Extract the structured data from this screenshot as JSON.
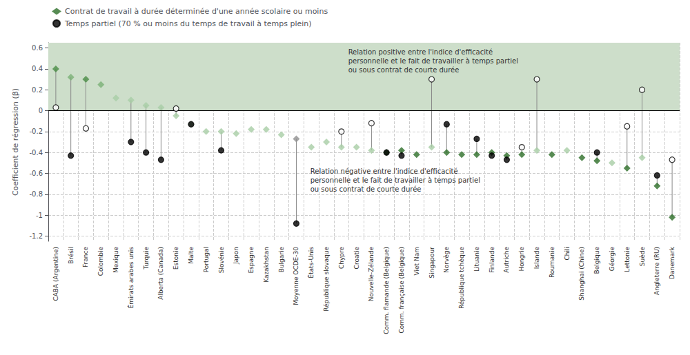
{
  "chart_data": {
    "type": "scatter",
    "ylabel": "Coefficient de régression (β)",
    "categories": [
      "CABA (Argentine)",
      "Brésil",
      "France",
      "Colombie",
      "Mexique",
      "Émirats arabes unis",
      "Turquie",
      "Alberta (Canada)",
      "Estonie",
      "Malte",
      "Portugal",
      "Slovénie",
      "Japon",
      "Espagne",
      "Kazakhstan",
      "Bulgarie",
      "Moyenne OCDE-30",
      "États-Unis",
      "République slovaque",
      "Chypre",
      "Croatie",
      "Nouvelle-Zélande",
      "Comm. flamande (Belgique)",
      "Comm. française (Belgique)",
      "Viet Nam",
      "Singapour",
      "Norvège",
      "République tchèque",
      "Lituanie",
      "Finlande",
      "Autriche",
      "Hongrie",
      "Islande",
      "Roumanie",
      "Chili",
      "Shanghai (Chine)",
      "Belgique",
      "Géorgie",
      "Lettonie",
      "Suède",
      "Angleterre (RU)",
      "Danemark"
    ],
    "series": [
      {
        "name": "Contrat de travail à durée déterminée d'une année scolaire ou moins",
        "marker": "diamond",
        "color": "#2d6e28",
        "values": [
          0.4,
          0.32,
          0.3,
          0.25,
          0.12,
          0.1,
          0.05,
          0.03,
          -0.05,
          -0.13,
          -0.2,
          -0.2,
          -0.22,
          -0.18,
          -0.18,
          -0.23,
          -0.27,
          -0.35,
          -0.3,
          -0.35,
          -0.35,
          -0.38,
          -0.4,
          -0.38,
          -0.42,
          -0.35,
          -0.4,
          -0.42,
          -0.42,
          -0.4,
          -0.43,
          -0.42,
          -0.38,
          -0.42,
          -0.38,
          -0.45,
          -0.48,
          -0.5,
          -0.55,
          -0.45,
          -0.72,
          -1.02
        ],
        "colors": [
          "#4a8c45",
          "#7ab075",
          "#4a8c45",
          "#7ab075",
          "#a8cda5",
          "#a8cda5",
          "#a8cda5",
          "#a8cda5",
          "#a8cda5",
          "#a8cda5",
          "#a8cda5",
          "#a8cda5",
          "#a8cda5",
          "#a8cda5",
          "#a8cda5",
          "#a8cda5",
          "#909090",
          "#a8cda5",
          "#a8cda5",
          "#a8cda5",
          "#a8cda5",
          "#a8cda5",
          "#2d6e28",
          "#2d6e28",
          "#2d6e28",
          "#a8cda5",
          "#2d6e28",
          "#2d6e28",
          "#2d6e28",
          "#2d6e28",
          "#2d6e28",
          "#2d6e28",
          "#a8cda5",
          "#2d6e28",
          "#a8cda5",
          "#2d6e28",
          "#2d6e28",
          "#a8cda5",
          "#2d6e28",
          "#a8cda5",
          "#2d6e28",
          "#2d6e28"
        ]
      },
      {
        "name": "Temps partiel (70 % ou moins du temps de travail à temps plein)",
        "marker": "circle",
        "color": "#000000",
        "values": [
          0.03,
          -0.43,
          -0.17,
          null,
          null,
          -0.3,
          -0.4,
          -0.47,
          0.02,
          -0.13,
          null,
          -0.38,
          null,
          null,
          null,
          null,
          -1.08,
          null,
          null,
          -0.2,
          null,
          -0.12,
          -0.4,
          -0.43,
          null,
          0.3,
          -0.13,
          null,
          -0.27,
          -0.43,
          -0.47,
          -0.35,
          0.3,
          null,
          null,
          null,
          -0.4,
          null,
          -0.15,
          0.2,
          -0.62,
          -0.47
        ],
        "colors": [
          "#ffffff",
          "#000000",
          "#ffffff",
          null,
          null,
          "#000000",
          "#000000",
          "#000000",
          "#ffffff",
          "#000000",
          null,
          "#000000",
          null,
          null,
          null,
          null,
          "#000000",
          null,
          null,
          "#ffffff",
          null,
          "#ffffff",
          "#000000",
          "#000000",
          null,
          "#ffffff",
          "#000000",
          null,
          "#000000",
          "#000000",
          "#000000",
          "#ffffff",
          "#ffffff",
          null,
          null,
          null,
          "#000000",
          null,
          "#ffffff",
          "#ffffff",
          "#000000",
          "#ffffff"
        ]
      }
    ],
    "annotations": [
      {
        "text": "Relation positive entre l'indice d'efficacité\npersonnelle et le fait de travailler à temps partiel\nou sous contrat de courte durée",
        "color": "#cddeca"
      },
      {
        "text": "Relation négative entre l'indice d'efficacité\npersonnelle et le fait de travailler à temps partiel\nou sous contrat de courte durée"
      }
    ],
    "ylim": [
      -1.25,
      0.65
    ],
    "yticks": [
      -1.2,
      -1.0,
      -0.8,
      -0.6,
      -0.4,
      -0.2,
      0.0,
      0.2,
      0.4,
      0.6
    ],
    "grid": true,
    "legend": "top left"
  }
}
